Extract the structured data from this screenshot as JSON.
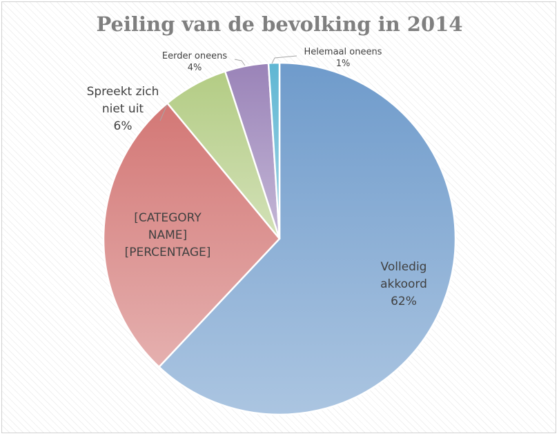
{
  "chart_data": {
    "type": "pie",
    "title": "Peiling van de bevolking in 2014",
    "slices": [
      {
        "category": "Volledig akkoord",
        "value": 62,
        "label_lines": [
          "Volledig",
          "akkoord",
          "62%"
        ],
        "color": "#6f9bcb"
      },
      {
        "category": "[CATEGORY NAME]",
        "value": 27,
        "label_lines": [
          "[CATEGORY",
          "NAME]",
          "[PERCENTAGE]"
        ],
        "color": "#d37775"
      },
      {
        "category": "Spreekt zich niet uit",
        "value": 6,
        "label_lines": [
          "Spreekt zich",
          "niet uit",
          "6%"
        ],
        "color": "#b3cc84"
      },
      {
        "category": "Eerder oneens",
        "value": 4,
        "label_lines": [
          "Eerder oneens",
          "4%"
        ],
        "color": "#9a83b8"
      },
      {
        "category": "Helemaal oneens",
        "value": 1,
        "label_lines": [
          "Helemaal oneens",
          "1%"
        ],
        "color": "#5fb6d3"
      }
    ],
    "legend": "none",
    "grid": false
  }
}
